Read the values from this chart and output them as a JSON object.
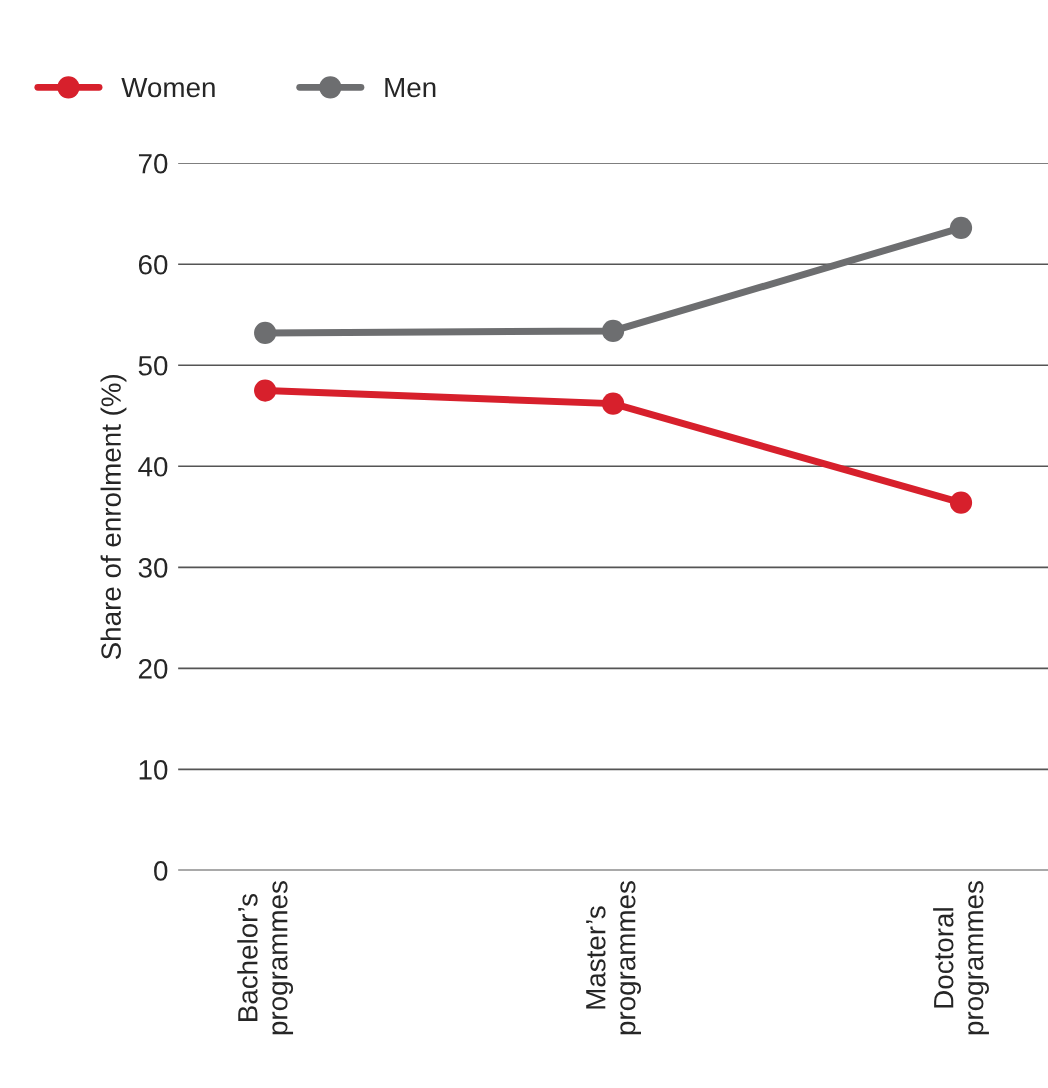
{
  "chart_data": {
    "type": "line",
    "ylabel": "Share of enrolment (%)",
    "categories": [
      "Bachelor’s\nprogrammes",
      "Master’s\nprogrammes",
      "Doctoral\nprogrammes"
    ],
    "series": [
      {
        "name": "Women",
        "color": "#d7202c",
        "values": [
          47.5,
          46.2,
          36.4
        ]
      },
      {
        "name": "Men",
        "color": "#6d6e70",
        "values": [
          53.2,
          53.4,
          63.6
        ]
      }
    ],
    "ylim": [
      0,
      70
    ],
    "yticks": [
      0,
      10,
      20,
      30,
      40,
      50,
      60,
      70
    ],
    "grid": "y",
    "legend": "top left",
    "marker": "circle",
    "line_style": "solid"
  }
}
